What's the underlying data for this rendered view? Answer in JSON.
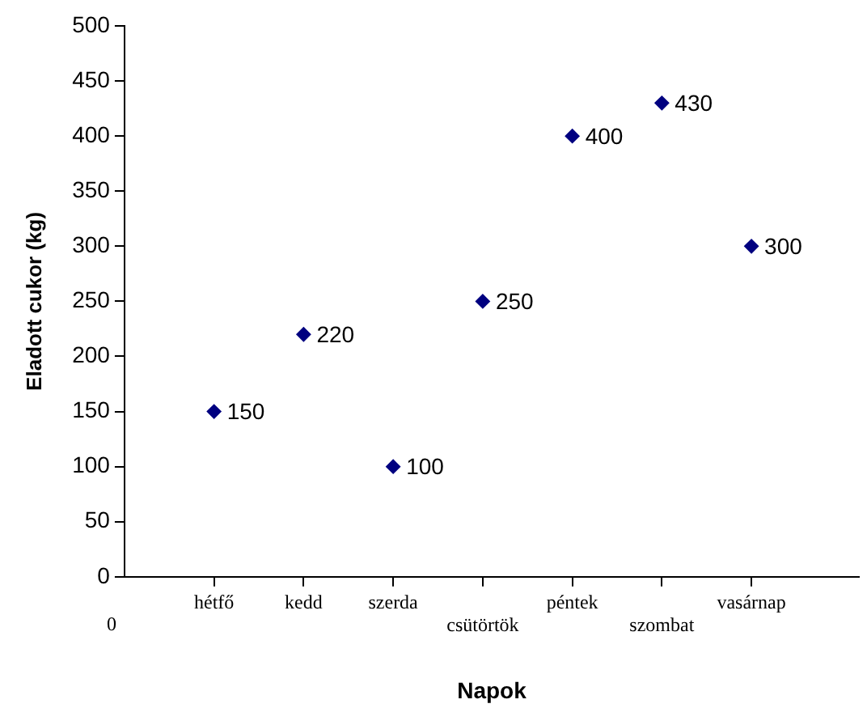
{
  "chart_data": {
    "type": "scatter",
    "xlabel": "Napok",
    "ylabel": "Eladott cukor (kg)",
    "categories": [
      "hétfő",
      "kedd",
      "szerda",
      "csütörtök",
      "péntek",
      "szombat",
      "vasárnap"
    ],
    "annotations": [
      "0"
    ],
    "values": [
      150,
      220,
      100,
      250,
      400,
      430,
      300
    ],
    "color": "#000080",
    "marker": "diamond",
    "data_labels": true,
    "ylim": [
      0,
      500
    ],
    "yticks": [
      0,
      50,
      100,
      150,
      200,
      250,
      300,
      350,
      400,
      450,
      500
    ],
    "grid": false,
    "legend": false
  }
}
